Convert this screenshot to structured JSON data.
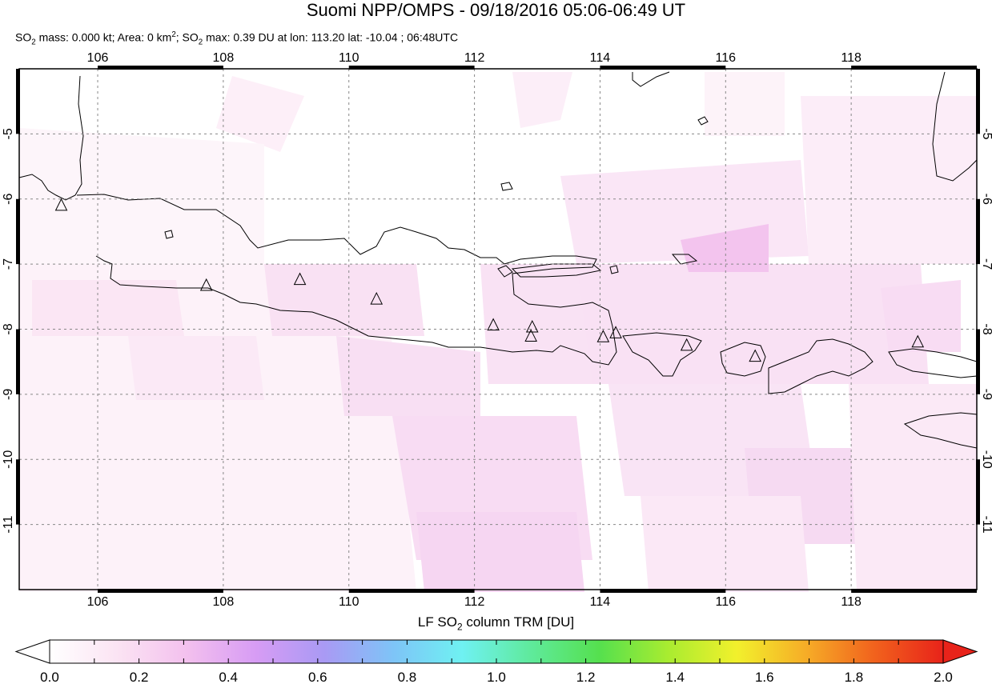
{
  "title": "Suomi NPP/OMPS - 09/18/2016 05:06-06:49 UT",
  "subtitle": {
    "p1": "SO",
    "s1": "2",
    "p2": " mass: 0.000 kt; Area: 0 km",
    "s2": "2",
    "p3": "; SO",
    "s3": "2",
    "p4": " max: 0.39 DU at lon: 113.20 lat: -10.04 ; 06:48UTC"
  },
  "map": {
    "lon_range": [
      104.75,
      120
    ],
    "lat_range": [
      -12,
      -4
    ],
    "lon_ticks": [
      "106",
      "108",
      "110",
      "112",
      "114",
      "116",
      "118"
    ],
    "lat_ticks": [
      "-5",
      "-6",
      "-7",
      "-8",
      "-9",
      "-10",
      "-11"
    ],
    "grid": "dashed",
    "volcano_marker": "triangle-icon",
    "volcanoes": [
      {
        "lon": 105.42,
        "lat": -6.1
      },
      {
        "lon": 107.73,
        "lat": -7.33
      },
      {
        "lon": 109.22,
        "lat": -7.24
      },
      {
        "lon": 110.44,
        "lat": -7.54
      },
      {
        "lon": 112.3,
        "lat": -7.94
      },
      {
        "lon": 112.92,
        "lat": -7.97
      },
      {
        "lon": 112.9,
        "lat": -8.11
      },
      {
        "lon": 114.05,
        "lat": -8.12
      },
      {
        "lon": 114.25,
        "lat": -8.06
      },
      {
        "lon": 115.38,
        "lat": -8.25
      },
      {
        "lon": 116.47,
        "lat": -8.42
      },
      {
        "lon": 119.06,
        "lat": -8.2
      }
    ]
  },
  "colorbar": {
    "label_p1": "LF SO",
    "label_s1": "2",
    "label_p2": " column TRM [DU]",
    "ticks": [
      "0.0",
      "0.2",
      "0.4",
      "0.6",
      "0.8",
      "1.0",
      "1.2",
      "1.4",
      "1.6",
      "1.8",
      "2.0"
    ],
    "colors": [
      "#ffffff",
      "#fbe3f3",
      "#f3c0ee",
      "#d79cf4",
      "#a99af4",
      "#7ec4f7",
      "#6ff1f2",
      "#5fea9c",
      "#55e04e",
      "#a9ec30",
      "#f2f02c",
      "#f6ad27",
      "#f1621d",
      "#e8231a"
    ]
  }
}
